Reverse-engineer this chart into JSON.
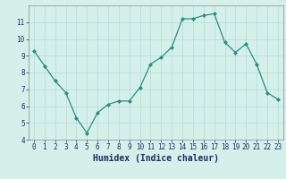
{
  "x": [
    0,
    1,
    2,
    3,
    4,
    5,
    6,
    7,
    8,
    9,
    10,
    11,
    12,
    13,
    14,
    15,
    16,
    17,
    18,
    19,
    20,
    21,
    22,
    23
  ],
  "y": [
    9.3,
    8.4,
    7.5,
    6.8,
    5.3,
    4.4,
    5.6,
    6.1,
    6.3,
    6.3,
    7.1,
    8.5,
    8.9,
    9.5,
    11.2,
    11.2,
    11.4,
    11.5,
    9.8,
    9.2,
    9.7,
    8.5,
    6.8,
    6.4
  ],
  "xlabel": "Humidex (Indice chaleur)",
  "xlim": [
    -0.5,
    23.5
  ],
  "ylim": [
    4,
    12
  ],
  "yticks": [
    4,
    5,
    6,
    7,
    8,
    9,
    10,
    11
  ],
  "xticks": [
    0,
    1,
    2,
    3,
    4,
    5,
    6,
    7,
    8,
    9,
    10,
    11,
    12,
    13,
    14,
    15,
    16,
    17,
    18,
    19,
    20,
    21,
    22,
    23
  ],
  "line_color": "#2d8c7e",
  "marker_color": "#2d8c7e",
  "bg_color": "#d5f0eb",
  "grid_color": "#b0ddd6",
  "tick_label_color": "#1a3060",
  "xlabel_color": "#1a3060",
  "tick_fontsize": 5.5,
  "xlabel_fontsize": 7
}
